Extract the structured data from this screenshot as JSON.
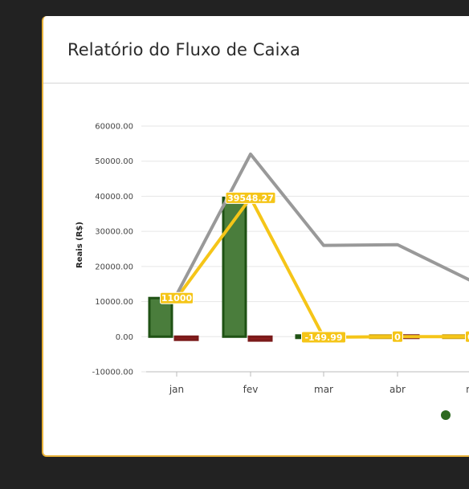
{
  "card": {
    "title": "Relatório do Fluxo de Caixa"
  },
  "chart_data": {
    "type": "bar",
    "ylabel": "Reais (R$)",
    "ylim": [
      -10000,
      60000
    ],
    "yticks": [
      60000,
      50000,
      40000,
      30000,
      20000,
      10000,
      0,
      -10000
    ],
    "ytick_labels": [
      "60000.00",
      "50000.00",
      "40000.00",
      "30000.00",
      "20000.00",
      "10000.00",
      "0.00",
      "-10000.00"
    ],
    "categories": [
      "jan",
      "fev",
      "mar",
      "abr",
      "m"
    ],
    "grid": true,
    "series": [
      {
        "kind": "bar",
        "color": "#2d6a1f",
        "values": [
          11000,
          39548.27,
          -149.99,
          0,
          0
        ]
      },
      {
        "kind": "bar",
        "color": "#7a1a1a",
        "values": [
          -900,
          -1100,
          -300,
          0,
          0
        ]
      },
      {
        "kind": "line",
        "color": "#f5c518",
        "values": [
          11000,
          39548.27,
          -149.99,
          0,
          0
        ]
      },
      {
        "kind": "line",
        "color": "#999999",
        "values": [
          12000,
          52000,
          26000,
          26200,
          16000
        ]
      }
    ],
    "data_labels": [
      "11000",
      "39548.27",
      "-149.99",
      "0",
      "0"
    ],
    "colors": {
      "label_bg": "#f5c518",
      "axis": "#bbbbbb",
      "grid": "#e6e6e6"
    }
  }
}
